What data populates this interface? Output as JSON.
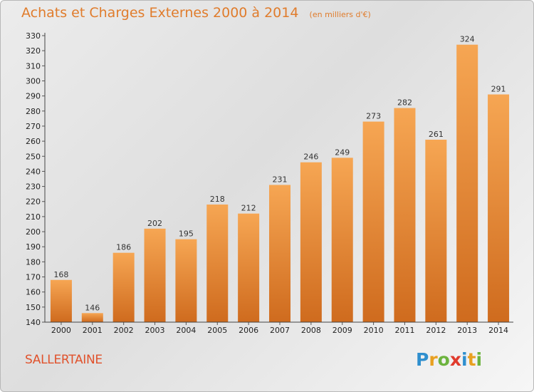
{
  "title": "Achats et Charges Externes 2000 à 2014",
  "subtitle": "(en milliers d'€)",
  "commune": "SALLERTAINE",
  "logo": {
    "letters": [
      "P",
      "r",
      "o",
      "x",
      "i",
      "t",
      "i"
    ],
    "colors": [
      "#2f8fce",
      "#e8a020",
      "#6cb33e",
      "#e03a2c",
      "#2f8fce",
      "#e8a020",
      "#6cb33e"
    ]
  },
  "colors": {
    "bar_light": "#f6a653",
    "bar_dark": "#cf6b1e",
    "title": "#e07c2c",
    "commune": "#e0522c"
  },
  "chart_data": {
    "type": "bar",
    "title": "Achats et Charges Externes 2000 à 2014",
    "subtitle": "(en milliers d'€)",
    "categories": [
      "2000",
      "2001",
      "2002",
      "2003",
      "2004",
      "2005",
      "2006",
      "2007",
      "2008",
      "2009",
      "2010",
      "2011",
      "2012",
      "2013",
      "2014"
    ],
    "values": [
      168,
      146,
      186,
      202,
      195,
      218,
      212,
      231,
      246,
      249,
      273,
      282,
      261,
      324,
      291
    ],
    "ylim": [
      140,
      330
    ],
    "ytick_step": 10,
    "grid": false
  }
}
